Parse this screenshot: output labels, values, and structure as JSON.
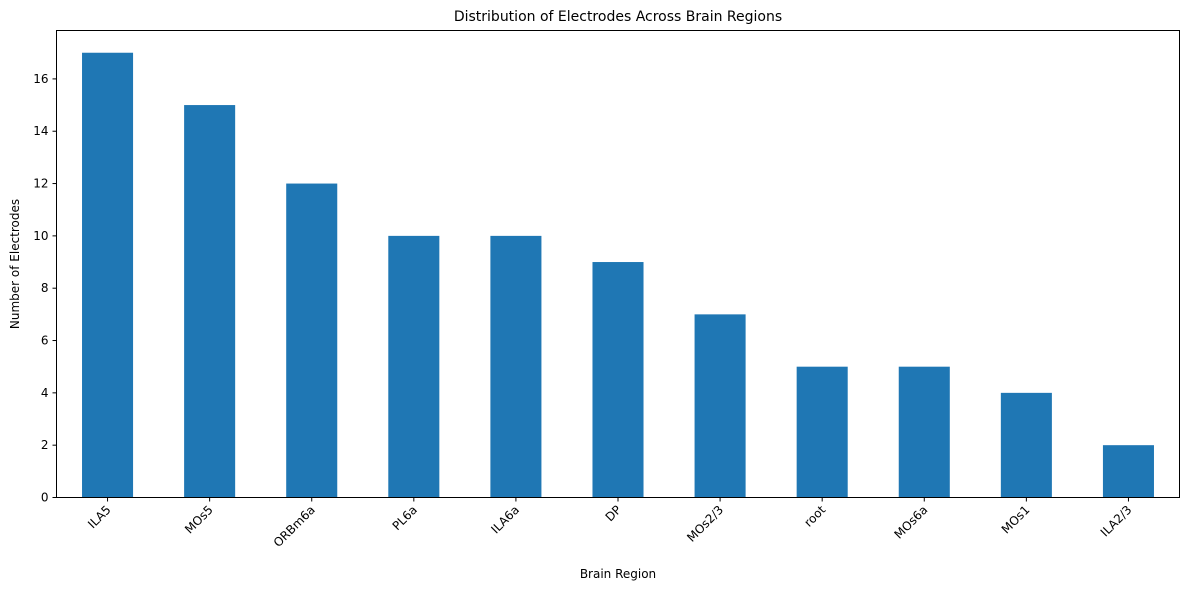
{
  "chart_data": {
    "type": "bar",
    "title": "Distribution of Electrodes Across Brain Regions",
    "xlabel": "Brain Region",
    "ylabel": "Number of Electrodes",
    "categories": [
      "ILA5",
      "MOs5",
      "ORBm6a",
      "PL6a",
      "ILA6a",
      "DP",
      "MOs2/3",
      "root",
      "MOs6a",
      "MOs1",
      "ILA2/3"
    ],
    "values": [
      17,
      15,
      12,
      10,
      10,
      9,
      7,
      5,
      5,
      4,
      2
    ],
    "ylim": [
      0,
      17.85
    ],
    "yticks": [
      0,
      2,
      4,
      6,
      8,
      10,
      12,
      14,
      16
    ],
    "bar_color": "#1f77b4",
    "grid": false,
    "legend": "none"
  }
}
